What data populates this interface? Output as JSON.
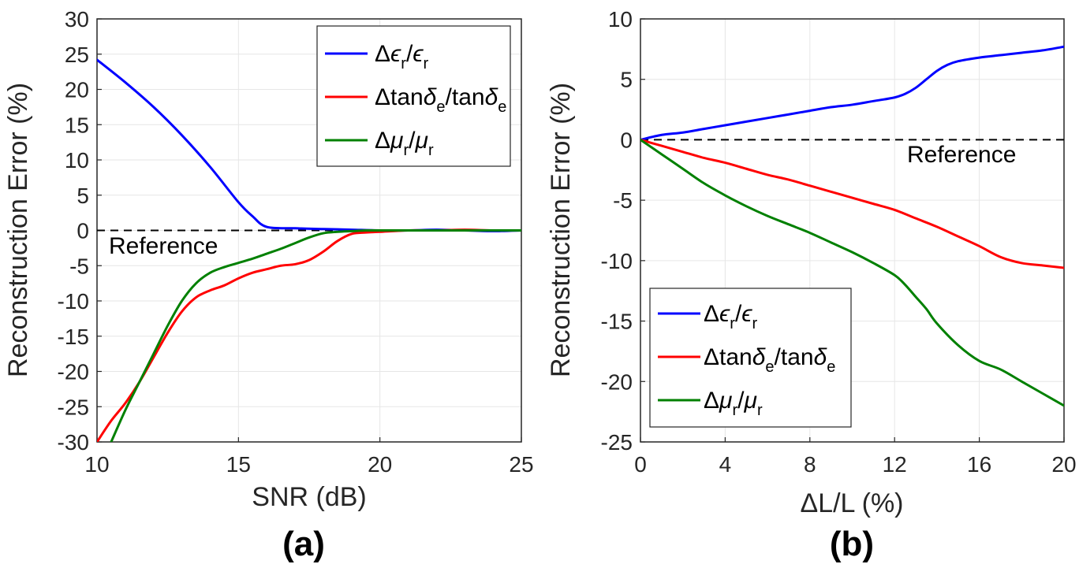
{
  "colors": {
    "eps": "#0000ff",
    "tan": "#ff0000",
    "mu": "#008000",
    "reference": "#000000",
    "grid": "#e6e6e6",
    "axis": "#262626"
  },
  "legend_labels": [
    {
      "series": "eps",
      "display": "Δϵr/ϵr"
    },
    {
      "series": "tan",
      "display": "Δtanδe/tanδe"
    },
    {
      "series": "mu",
      "display": "Δμr/μr"
    }
  ],
  "chart_data": [
    {
      "type": "line",
      "panel_label": "(a)",
      "xlabel": "SNR (dB)",
      "ylabel": "Reconstruction Error (%)",
      "xlim": [
        10,
        25
      ],
      "ylim": [
        -30,
        30
      ],
      "xticks": [
        10,
        15,
        20,
        25
      ],
      "yticks": [
        30,
        25,
        20,
        15,
        10,
        5,
        0,
        -5,
        -10,
        -15,
        -20,
        -25,
        -30
      ],
      "grid": true,
      "legend_position": "top-right",
      "reference": {
        "label": "Reference",
        "y": 0
      },
      "series": [
        {
          "key": "eps",
          "name": "Δϵr/ϵr",
          "x": [
            10,
            11,
            12,
            13,
            14,
            15,
            15.5,
            16,
            17,
            18,
            19,
            20,
            21,
            22,
            23,
            24,
            25
          ],
          "y": [
            24.2,
            21,
            17.5,
            13.5,
            9,
            4,
            2,
            0.5,
            0.3,
            0.2,
            0.1,
            0,
            0,
            0.1,
            0,
            -0.1,
            0
          ]
        },
        {
          "key": "tan",
          "name": "Δtanδe/tanδe",
          "x": [
            10,
            10.5,
            11,
            11.5,
            12,
            12.5,
            13,
            13.5,
            14,
            14.5,
            15,
            15.5,
            16,
            16.5,
            17,
            17.5,
            18,
            18.5,
            19,
            19.5,
            20,
            21,
            22,
            23,
            24,
            25
          ],
          "y": [
            -30,
            -27,
            -24.5,
            -21.5,
            -18,
            -14.5,
            -11.5,
            -9.5,
            -8.5,
            -7.8,
            -6.8,
            -6,
            -5.5,
            -5,
            -4.8,
            -4.2,
            -3,
            -1.5,
            -0.5,
            -0.3,
            -0.2,
            0,
            0,
            0.1,
            0,
            0
          ]
        },
        {
          "key": "mu",
          "name": "Δμr/μr",
          "x": [
            10.5,
            11,
            11.5,
            12,
            12.5,
            13,
            13.5,
            14,
            14.5,
            15,
            15.5,
            16,
            16.5,
            17,
            17.5,
            18,
            18.5,
            19,
            19.5,
            20,
            21,
            22,
            23,
            24,
            25
          ],
          "y": [
            -30,
            -25.5,
            -21.5,
            -17.5,
            -13.5,
            -10,
            -7.5,
            -6,
            -5.2,
            -4.6,
            -4,
            -3.3,
            -2.6,
            -1.8,
            -1,
            -0.4,
            -0.2,
            -0.1,
            0,
            0,
            0,
            0,
            0,
            0,
            0
          ]
        }
      ]
    },
    {
      "type": "line",
      "panel_label": "(b)",
      "xlabel": "ΔL/L (%)",
      "ylabel": "Reconstruction Error (%)",
      "xlim": [
        0,
        20
      ],
      "ylim": [
        -25,
        10
      ],
      "xticks": [
        0,
        4,
        8,
        12,
        16,
        20
      ],
      "yticks": [
        10,
        5,
        0,
        -5,
        -10,
        -15,
        -20,
        -25
      ],
      "grid": true,
      "legend_position": "bottom-left",
      "reference": {
        "label": "Reference",
        "y": 0
      },
      "series": [
        {
          "key": "eps",
          "name": "Δϵr/ϵr",
          "x": [
            0,
            1,
            2,
            3,
            4,
            5,
            6,
            7,
            8,
            9,
            10,
            11,
            12,
            12.5,
            13,
            13.5,
            14,
            14.5,
            15,
            16,
            17,
            18,
            19,
            20
          ],
          "y": [
            0,
            0.4,
            0.6,
            0.9,
            1.2,
            1.5,
            1.8,
            2.1,
            2.4,
            2.7,
            2.9,
            3.2,
            3.5,
            3.8,
            4.3,
            5,
            5.7,
            6.2,
            6.5,
            6.8,
            7,
            7.2,
            7.4,
            7.7
          ]
        },
        {
          "key": "tan",
          "name": "Δtanδe/tanδe",
          "x": [
            0,
            1,
            2,
            3,
            4,
            5,
            6,
            7,
            8,
            9,
            10,
            11,
            12,
            13,
            14,
            15,
            16,
            17,
            18,
            19,
            20
          ],
          "y": [
            0,
            -0.5,
            -1,
            -1.5,
            -1.9,
            -2.4,
            -2.9,
            -3.3,
            -3.8,
            -4.3,
            -4.8,
            -5.3,
            -5.8,
            -6.5,
            -7.2,
            -8,
            -8.8,
            -9.7,
            -10.2,
            -10.4,
            -10.6
          ]
        },
        {
          "key": "mu",
          "name": "Δμr/μr",
          "x": [
            0,
            1,
            2,
            3,
            4,
            5,
            6,
            7,
            8,
            9,
            10,
            11,
            12,
            12.5,
            13,
            13.5,
            14,
            15,
            16,
            17,
            18,
            19,
            20
          ],
          "y": [
            0,
            -1.2,
            -2.4,
            -3.6,
            -4.6,
            -5.5,
            -6.3,
            -7,
            -7.7,
            -8.5,
            -9.3,
            -10.2,
            -11.2,
            -12,
            -13,
            -14,
            -15.2,
            -17,
            -18.3,
            -19,
            -20,
            -21,
            -22
          ]
        }
      ]
    }
  ]
}
